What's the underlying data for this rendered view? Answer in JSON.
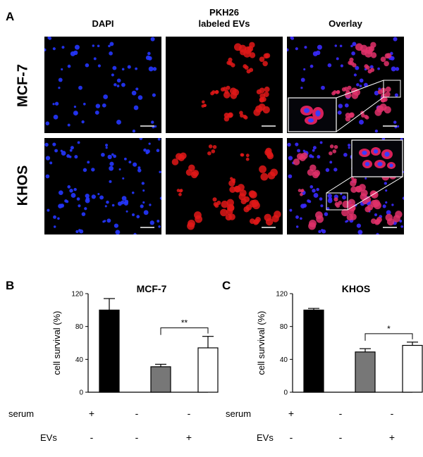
{
  "panel_a": {
    "letter": "A",
    "columns": [
      {
        "line1": "DAPI",
        "line2": ""
      },
      {
        "line1": "PKH26",
        "line2": "labeled EVs"
      },
      {
        "line1": "Overlay",
        "line2": ""
      }
    ],
    "rows": [
      "MCF-7",
      "KHOS"
    ]
  },
  "panel_b": {
    "letter": "B",
    "treatment_labels": {
      "serum": "serum",
      "evs": "EVs"
    },
    "serum_signs": [
      "+",
      "-",
      "-"
    ],
    "ev_signs": [
      "-",
      "-",
      "+"
    ]
  },
  "panel_c": {
    "letter": "C",
    "treatment_labels": {
      "serum": "serum",
      "evs": "EVs"
    },
    "serum_signs": [
      "+",
      "-",
      "-"
    ],
    "ev_signs": [
      "-",
      "-",
      "+"
    ]
  },
  "chart_data": [
    {
      "type": "bar",
      "title": "MCF-7",
      "ylabel": "cell survival (%)",
      "xlabel": "",
      "ylim": [
        0,
        120
      ],
      "yticks": [
        0,
        40,
        80,
        120
      ],
      "categories": [
        "serum+ EVs-",
        "serum- EVs-",
        "serum- EVs+"
      ],
      "values": [
        100,
        31,
        54
      ],
      "errors": [
        14,
        3,
        14
      ],
      "bar_colors": [
        "#000000",
        "#777777",
        "#ffffff"
      ],
      "significance": {
        "from": 1,
        "to": 2,
        "label": "**"
      }
    },
    {
      "type": "bar",
      "title": "KHOS",
      "ylabel": "cell survival (%)",
      "xlabel": "",
      "ylim": [
        0,
        120
      ],
      "yticks": [
        0,
        40,
        80,
        120
      ],
      "categories": [
        "serum+ EVs-",
        "serum- EVs-",
        "serum- EVs+"
      ],
      "values": [
        100,
        49,
        57
      ],
      "errors": [
        2,
        4,
        4
      ],
      "bar_colors": [
        "#000000",
        "#777777",
        "#ffffff"
      ],
      "significance": {
        "from": 1,
        "to": 2,
        "label": "*"
      }
    }
  ]
}
